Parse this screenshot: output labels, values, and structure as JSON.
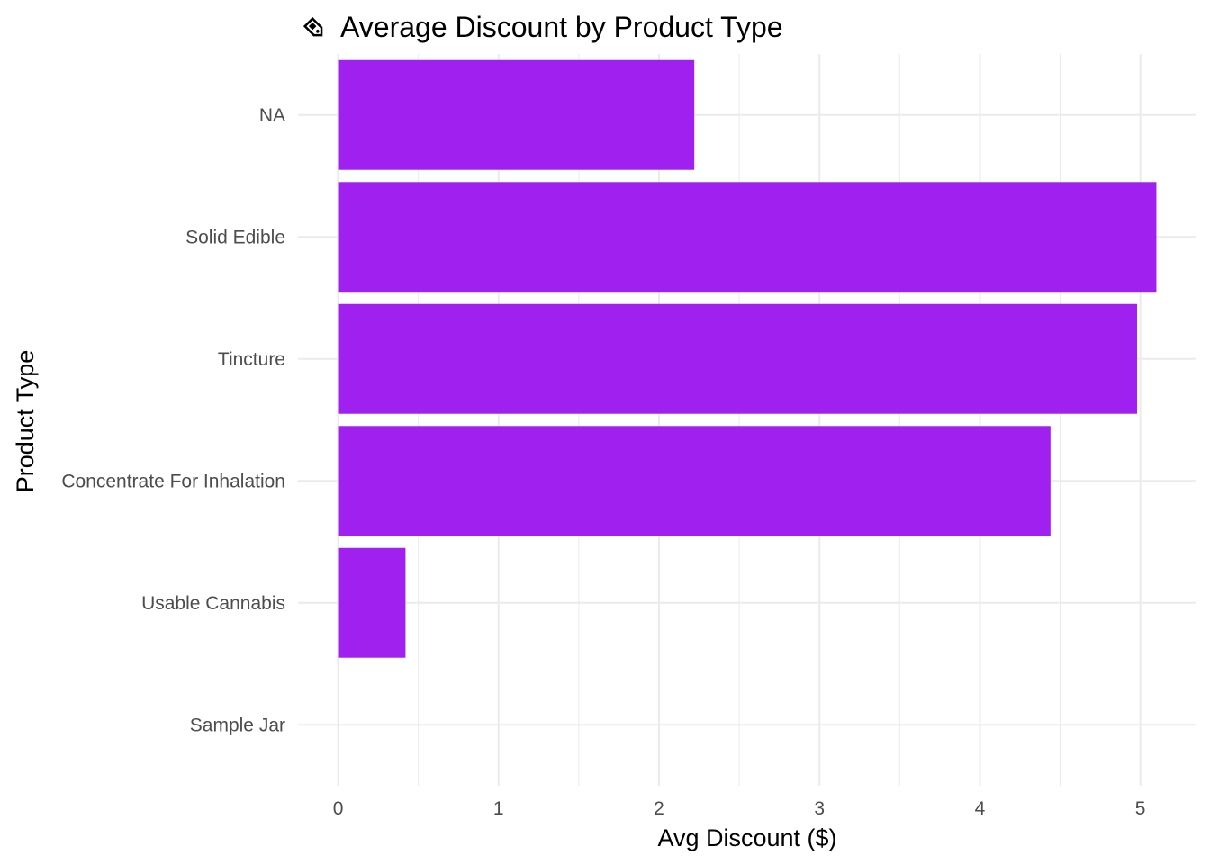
{
  "chart_data": {
    "type": "bar",
    "orientation": "horizontal",
    "title": "Average Discount by Product Type",
    "title_icon": "price-tag-icon",
    "xlabel": "Avg Discount ($)",
    "ylabel": "Product Type",
    "categories": [
      "NA",
      "Solid Edible",
      "Tincture",
      "Concentrate For Inhalation",
      "Usable Cannabis",
      "Sample Jar"
    ],
    "values": [
      2.22,
      5.1,
      4.98,
      4.44,
      0.42,
      0.0
    ],
    "xlim": [
      -0.25,
      5.35
    ],
    "xticks": [
      0,
      1,
      2,
      3,
      4,
      5
    ],
    "xtick_labels": [
      "0",
      "1",
      "2",
      "3",
      "4",
      "5"
    ],
    "bar_color": "#a020f0",
    "grid": true,
    "legend": "none"
  }
}
